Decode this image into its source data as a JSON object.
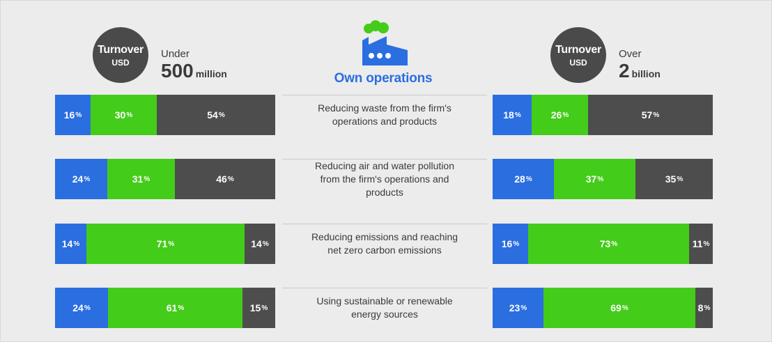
{
  "colors": {
    "blue": "#2a6ee0",
    "green": "#44cc1a",
    "gray": "#4d4d4d",
    "badge": "#4a4a4a"
  },
  "left_header": {
    "badge_line1": "Turnover",
    "badge_line2": "USD",
    "qualifier": "Under",
    "amount": "500",
    "unit": "million"
  },
  "right_header": {
    "badge_line1": "Turnover",
    "badge_line2": "USD",
    "qualifier": "Over",
    "amount": "2",
    "unit": "billion"
  },
  "center_title": "Own operations",
  "icon": "factory-icon",
  "chart_data": [
    {
      "type": "bar",
      "stacked": true,
      "orientation": "horizontal",
      "group": "Under 500 million",
      "categories": [
        "Reducing waste from the firm's operations and products",
        "Reducing air and water pollution from the firm's operations and products",
        "Reducing emissions and reaching net zero carbon emissions",
        "Using sustainable or renewable energy sources"
      ],
      "series": [
        {
          "color": "#2a6ee0",
          "values": [
            16,
            24,
            14,
            24
          ]
        },
        {
          "color": "#44cc1a",
          "values": [
            30,
            31,
            71,
            61
          ]
        },
        {
          "color": "#4d4d4d",
          "values": [
            54,
            46,
            14,
            15
          ]
        }
      ],
      "xlim": [
        0,
        100
      ]
    },
    {
      "type": "bar",
      "stacked": true,
      "orientation": "horizontal",
      "group": "Over 2 billion",
      "categories": [
        "Reducing waste from the firm's operations and products",
        "Reducing air and water pollution from the firm's operations and products",
        "Reducing emissions and reaching net zero carbon emissions",
        "Using sustainable or renewable energy sources"
      ],
      "series": [
        {
          "color": "#2a6ee0",
          "values": [
            18,
            28,
            16,
            23
          ]
        },
        {
          "color": "#44cc1a",
          "values": [
            26,
            37,
            73,
            69
          ]
        },
        {
          "color": "#4d4d4d",
          "values": [
            57,
            35,
            11,
            8
          ]
        }
      ],
      "xlim": [
        0,
        100
      ]
    }
  ],
  "rows": [
    {
      "label_lines": [
        "Reducing waste from the firm's",
        "operations and products"
      ]
    },
    {
      "label_lines": [
        "Reducing air and water pollution",
        "from the firm's operations and",
        "products"
      ]
    },
    {
      "label_lines": [
        "Reducing emissions and reaching",
        "net zero carbon emissions"
      ]
    },
    {
      "label_lines": [
        "Using sustainable or renewable",
        "energy sources"
      ]
    }
  ]
}
